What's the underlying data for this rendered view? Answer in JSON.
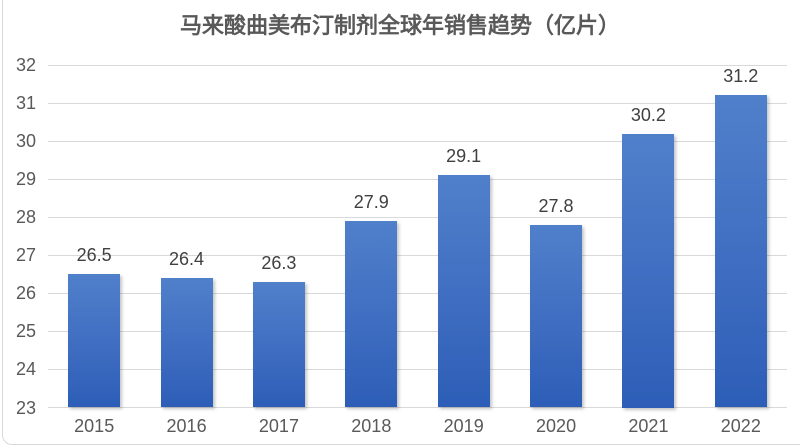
{
  "chart_data": {
    "type": "bar",
    "title": "马来酸曲美布汀制剂全球年销售趋势（亿片）",
    "categories": [
      "2015",
      "2016",
      "2017",
      "2018",
      "2019",
      "2020",
      "2021",
      "2022"
    ],
    "values": [
      26.5,
      26.4,
      26.3,
      27.9,
      29.1,
      27.8,
      30.2,
      31.2
    ],
    "data_labels": [
      "26.5",
      "26.4",
      "26.3",
      "27.9",
      "29.1",
      "27.8",
      "30.2",
      "31.2"
    ],
    "xlabel": "",
    "ylabel": "",
    "ylim": [
      23,
      32
    ],
    "ytick_step": 1,
    "grid": true,
    "legend_position": "none",
    "data_labels_shown": true
  },
  "style": {
    "bar_gradient_top": "#5080CA",
    "bar_gradient_mid": "#4472C4",
    "bar_gradient_bottom": "#2D5EB7",
    "gridline_color": "#D9D9D9",
    "axis_label_color": "#595959",
    "data_label_color": "#404040",
    "title_color": "#595959",
    "frame_border_color": "#D9D9D9",
    "background": "#FFFFFF"
  }
}
